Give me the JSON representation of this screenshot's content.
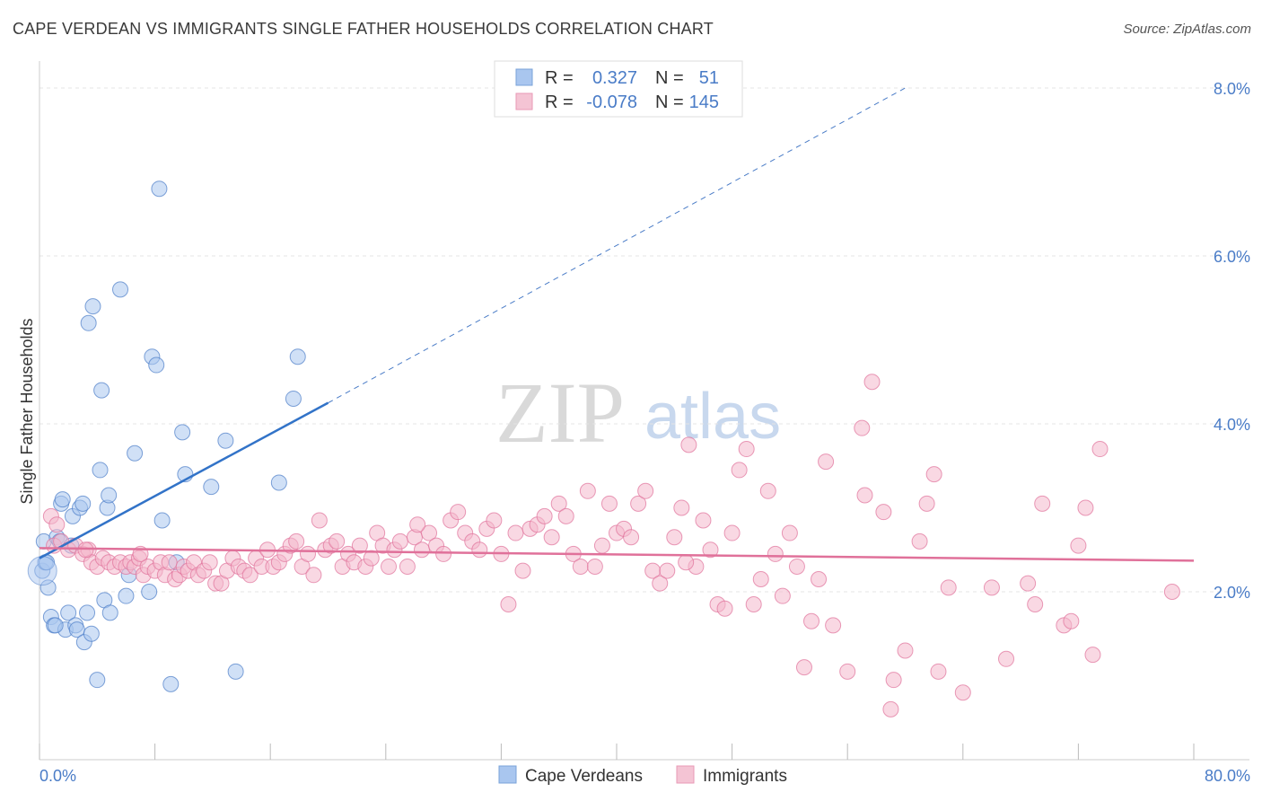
{
  "title": "CAPE VERDEAN VS IMMIGRANTS SINGLE FATHER HOUSEHOLDS CORRELATION CHART",
  "source": "Source: ZipAtlas.com",
  "watermark": {
    "zip": "ZIP",
    "atlas": "atlas"
  },
  "legend": {
    "r_label": "R =",
    "n_label": "N =",
    "rows": [
      {
        "r": "0.327",
        "n": "51",
        "color": "#4a7cc7"
      },
      {
        "r": "-0.078",
        "n": "145",
        "color": "#4a7cc7"
      }
    ]
  },
  "bottom_legend": [
    "Cape Verdeans",
    "Immigrants"
  ],
  "chart_data": {
    "type": "scatter",
    "title": "CAPE VERDEAN VS IMMIGRANTS SINGLE FATHER HOUSEHOLDS CORRELATION CHART",
    "xlabel": "",
    "ylabel": "Single Father Households",
    "xlim": [
      0,
      80
    ],
    "ylim": [
      0,
      8.0
    ],
    "x_tick_labels": [
      "0.0%",
      "80.0%"
    ],
    "y_tick_labels": [
      "2.0%",
      "4.0%",
      "6.0%",
      "8.0%"
    ],
    "y_ticks": [
      2.0,
      4.0,
      6.0,
      8.0
    ],
    "grid": true,
    "legend_position": "top-center",
    "series": [
      {
        "name": "Cape Verdeans",
        "color": "#4a7cc7",
        "fill": "#a9c6ef",
        "r": 0.327,
        "n": 51,
        "trend": {
          "x0": 0,
          "y0": 2.4,
          "x1": 20,
          "y1": 4.25,
          "dash_to_x": 60,
          "dash_to_y": 8.0
        },
        "points": [
          [
            0.2,
            2.25
          ],
          [
            0.3,
            2.6
          ],
          [
            0.4,
            2.35
          ],
          [
            0.6,
            2.05
          ],
          [
            0.8,
            1.7
          ],
          [
            1.0,
            1.6
          ],
          [
            1.2,
            2.65
          ],
          [
            1.4,
            2.6
          ],
          [
            1.5,
            3.05
          ],
          [
            1.6,
            3.1
          ],
          [
            1.8,
            1.55
          ],
          [
            2.0,
            1.75
          ],
          [
            2.2,
            2.55
          ],
          [
            2.3,
            2.9
          ],
          [
            2.5,
            1.6
          ],
          [
            2.6,
            1.55
          ],
          [
            2.8,
            3.0
          ],
          [
            3.0,
            3.05
          ],
          [
            3.1,
            1.4
          ],
          [
            3.3,
            1.75
          ],
          [
            3.4,
            5.2
          ],
          [
            3.6,
            1.5
          ],
          [
            3.7,
            5.4
          ],
          [
            4.0,
            0.95
          ],
          [
            4.2,
            3.45
          ],
          [
            4.3,
            4.4
          ],
          [
            4.5,
            1.9
          ],
          [
            4.7,
            3.0
          ],
          [
            4.8,
            3.15
          ],
          [
            4.9,
            1.75
          ],
          [
            5.6,
            5.6
          ],
          [
            6.0,
            1.95
          ],
          [
            6.2,
            2.2
          ],
          [
            6.6,
            3.65
          ],
          [
            7.6,
            2.0
          ],
          [
            7.8,
            4.8
          ],
          [
            8.1,
            4.7
          ],
          [
            8.3,
            6.8
          ],
          [
            8.5,
            2.85
          ],
          [
            9.1,
            0.9
          ],
          [
            9.5,
            2.35
          ],
          [
            9.9,
            3.9
          ],
          [
            10.1,
            3.4
          ],
          [
            11.9,
            3.25
          ],
          [
            12.9,
            3.8
          ],
          [
            13.6,
            1.05
          ],
          [
            16.6,
            3.3
          ],
          [
            17.6,
            4.3
          ],
          [
            17.9,
            4.8
          ],
          [
            0.5,
            2.35
          ],
          [
            1.1,
            1.6
          ]
        ]
      },
      {
        "name": "Immigrants",
        "color": "#e0719a",
        "fill": "#f4b8cc",
        "r": -0.078,
        "n": 145,
        "trend": {
          "x0": 0,
          "y0": 2.52,
          "x1": 80,
          "y1": 2.37
        },
        "points": [
          [
            0.8,
            2.9
          ],
          [
            1.0,
            2.55
          ],
          [
            1.2,
            2.8
          ],
          [
            1.5,
            2.6
          ],
          [
            2.0,
            2.5
          ],
          [
            2.5,
            2.55
          ],
          [
            3.0,
            2.45
          ],
          [
            3.4,
            2.5
          ],
          [
            3.6,
            2.35
          ],
          [
            4.0,
            2.3
          ],
          [
            4.4,
            2.4
          ],
          [
            4.8,
            2.35
          ],
          [
            5.2,
            2.3
          ],
          [
            5.6,
            2.35
          ],
          [
            6.0,
            2.3
          ],
          [
            6.3,
            2.35
          ],
          [
            6.6,
            2.3
          ],
          [
            6.9,
            2.4
          ],
          [
            7.2,
            2.2
          ],
          [
            7.5,
            2.3
          ],
          [
            8.0,
            2.25
          ],
          [
            8.4,
            2.35
          ],
          [
            8.7,
            2.2
          ],
          [
            9.0,
            2.35
          ],
          [
            9.4,
            2.15
          ],
          [
            9.7,
            2.2
          ],
          [
            10.0,
            2.3
          ],
          [
            10.3,
            2.25
          ],
          [
            10.7,
            2.35
          ],
          [
            11.0,
            2.2
          ],
          [
            11.4,
            2.25
          ],
          [
            11.8,
            2.35
          ],
          [
            12.2,
            2.1
          ],
          [
            12.6,
            2.1
          ],
          [
            13.0,
            2.25
          ],
          [
            13.4,
            2.4
          ],
          [
            13.8,
            2.3
          ],
          [
            14.2,
            2.25
          ],
          [
            14.6,
            2.2
          ],
          [
            15.0,
            2.4
          ],
          [
            15.4,
            2.3
          ],
          [
            15.8,
            2.5
          ],
          [
            16.2,
            2.3
          ],
          [
            16.6,
            2.35
          ],
          [
            17.0,
            2.45
          ],
          [
            17.4,
            2.55
          ],
          [
            17.8,
            2.6
          ],
          [
            18.2,
            2.3
          ],
          [
            18.6,
            2.45
          ],
          [
            19.0,
            2.2
          ],
          [
            19.4,
            2.85
          ],
          [
            19.8,
            2.5
          ],
          [
            20.2,
            2.55
          ],
          [
            20.6,
            2.6
          ],
          [
            21.0,
            2.3
          ],
          [
            21.4,
            2.45
          ],
          [
            21.8,
            2.35
          ],
          [
            22.2,
            2.55
          ],
          [
            22.6,
            2.3
          ],
          [
            23.0,
            2.4
          ],
          [
            23.4,
            2.7
          ],
          [
            23.8,
            2.55
          ],
          [
            24.2,
            2.3
          ],
          [
            24.6,
            2.5
          ],
          [
            25.0,
            2.6
          ],
          [
            25.5,
            2.3
          ],
          [
            26.0,
            2.65
          ],
          [
            26.5,
            2.5
          ],
          [
            27.0,
            2.7
          ],
          [
            27.5,
            2.55
          ],
          [
            28.0,
            2.45
          ],
          [
            28.5,
            2.85
          ],
          [
            29.0,
            2.95
          ],
          [
            29.5,
            2.7
          ],
          [
            30.0,
            2.6
          ],
          [
            30.5,
            2.5
          ],
          [
            31.0,
            2.75
          ],
          [
            31.5,
            2.85
          ],
          [
            32.0,
            2.45
          ],
          [
            32.5,
            1.85
          ],
          [
            33.0,
            2.7
          ],
          [
            33.5,
            2.25
          ],
          [
            34.0,
            2.75
          ],
          [
            34.5,
            2.8
          ],
          [
            35.0,
            2.9
          ],
          [
            35.5,
            2.65
          ],
          [
            36.0,
            3.05
          ],
          [
            36.5,
            2.9
          ],
          [
            37.0,
            2.45
          ],
          [
            37.5,
            2.3
          ],
          [
            38.0,
            3.2
          ],
          [
            38.5,
            2.3
          ],
          [
            39.0,
            2.55
          ],
          [
            39.5,
            3.05
          ],
          [
            40.0,
            2.7
          ],
          [
            40.5,
            2.75
          ],
          [
            41.0,
            2.65
          ],
          [
            41.5,
            3.05
          ],
          [
            42.0,
            3.2
          ],
          [
            42.5,
            2.25
          ],
          [
            43.0,
            2.1
          ],
          [
            43.5,
            2.25
          ],
          [
            44.0,
            2.65
          ],
          [
            44.5,
            3.0
          ],
          [
            45.0,
            3.75
          ],
          [
            45.5,
            2.3
          ],
          [
            46.0,
            2.85
          ],
          [
            46.5,
            2.5
          ],
          [
            47.0,
            1.85
          ],
          [
            47.5,
            1.8
          ],
          [
            48.0,
            2.7
          ],
          [
            48.5,
            3.45
          ],
          [
            49.0,
            3.7
          ],
          [
            49.5,
            1.85
          ],
          [
            50.0,
            2.15
          ],
          [
            50.5,
            3.2
          ],
          [
            51.0,
            2.45
          ],
          [
            51.5,
            1.95
          ],
          [
            52.0,
            2.7
          ],
          [
            52.5,
            2.3
          ],
          [
            53.0,
            1.1
          ],
          [
            53.5,
            1.65
          ],
          [
            54.0,
            2.15
          ],
          [
            54.5,
            3.55
          ],
          [
            55.0,
            1.6
          ],
          [
            56.0,
            1.05
          ],
          [
            57.0,
            3.95
          ],
          [
            57.2,
            3.15
          ],
          [
            57.7,
            4.5
          ],
          [
            58.5,
            2.95
          ],
          [
            59.0,
            0.6
          ],
          [
            59.2,
            0.95
          ],
          [
            60.0,
            1.3
          ],
          [
            61.0,
            2.6
          ],
          [
            61.5,
            3.05
          ],
          [
            62.0,
            3.4
          ],
          [
            62.3,
            1.05
          ],
          [
            63.0,
            2.05
          ],
          [
            64.0,
            0.8
          ],
          [
            66.0,
            2.05
          ],
          [
            67.0,
            1.2
          ],
          [
            68.5,
            2.1
          ],
          [
            69.0,
            1.85
          ],
          [
            69.5,
            3.05
          ],
          [
            71.0,
            1.6
          ],
          [
            71.5,
            1.65
          ],
          [
            72.0,
            2.55
          ],
          [
            72.5,
            3.0
          ],
          [
            73.0,
            1.25
          ],
          [
            73.5,
            3.7
          ],
          [
            78.5,
            2.0
          ],
          [
            3.2,
            2.5
          ],
          [
            7.0,
            2.45
          ],
          [
            26.2,
            2.8
          ],
          [
            44.8,
            2.35
          ]
        ]
      }
    ]
  }
}
